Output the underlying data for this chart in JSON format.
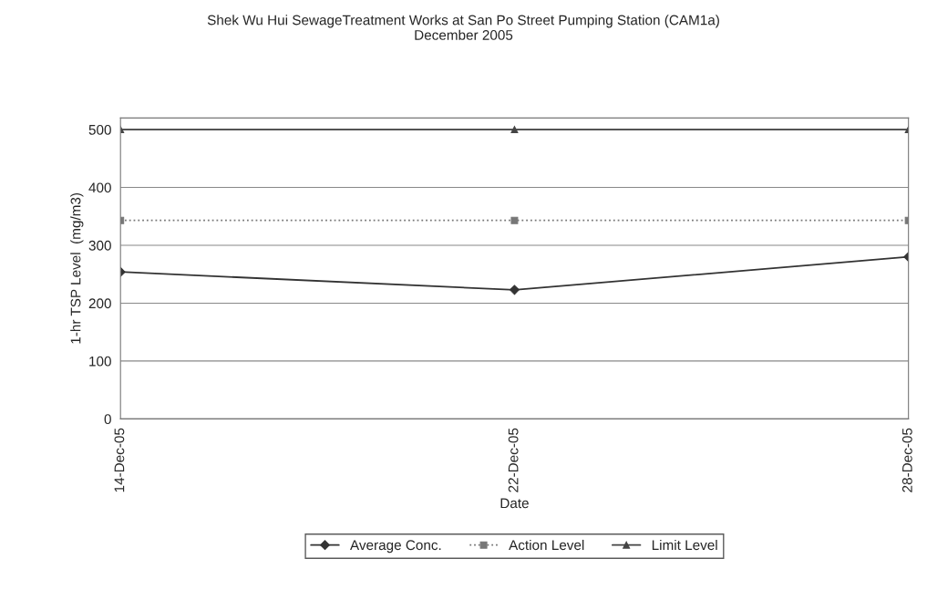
{
  "chart_data": {
    "type": "line",
    "title": "Shek Wu Hui SewageTreatment Works at San Po Street Pumping Station (CAM1a)\nDecember 2005",
    "xlabel": "Date",
    "ylabel": "1-hr TSP Level  (mg/m3)",
    "categories": [
      "14-Dec-05",
      "22-Dec-05",
      "28-Dec-05"
    ],
    "series": [
      {
        "name": "Average Conc.",
        "color": "#333333",
        "marker": "diamond",
        "line_style": "solid",
        "values": [
          254,
          223,
          280
        ]
      },
      {
        "name": "Action Level",
        "color": "#777777",
        "marker": "square",
        "line_style": "dotted",
        "values": [
          343,
          343,
          343
        ]
      },
      {
        "name": "Limit Level",
        "color": "#444444",
        "marker": "triangle",
        "line_style": "solid",
        "values": [
          500,
          500,
          500
        ]
      }
    ],
    "ylim": [
      0,
      520
    ],
    "yticks": [
      0,
      100,
      200,
      300,
      400,
      500
    ],
    "grid": "y",
    "legend": "bottom"
  }
}
